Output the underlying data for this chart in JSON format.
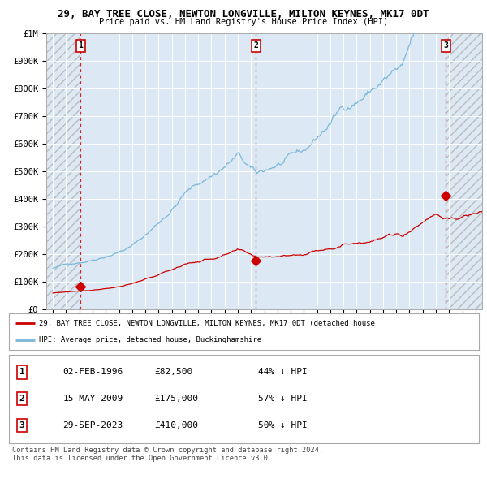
{
  "title": "29, BAY TREE CLOSE, NEWTON LONGVILLE, MILTON KEYNES, MK17 0DT",
  "subtitle": "Price paid vs. HM Land Registry's House Price Index (HPI)",
  "bg_color": "#dce9f5",
  "hpi_color": "#7ab8d9",
  "price_color": "#cc0000",
  "vline_color": "#cc0000",
  "sale_years": [
    1996.09,
    2009.37,
    2023.75
  ],
  "sale_prices": [
    82500,
    175000,
    410000
  ],
  "legend_line1": "29, BAY TREE CLOSE, NEWTON LONGVILLE, MILTON KEYNES, MK17 0DT (detached house",
  "legend_line2": "HPI: Average price, detached house, Buckinghamshire",
  "table_rows": [
    [
      "1",
      "02-FEB-1996",
      "£82,500",
      "44% ↓ HPI"
    ],
    [
      "2",
      "15-MAY-2009",
      "£175,000",
      "57% ↓ HPI"
    ],
    [
      "3",
      "29-SEP-2023",
      "£410,000",
      "50% ↓ HPI"
    ]
  ],
  "footer": "Contains HM Land Registry data © Crown copyright and database right 2024.\nThis data is licensed under the Open Government Licence v3.0.",
  "ylim": [
    0,
    1000000
  ],
  "yticks": [
    0,
    100000,
    200000,
    300000,
    400000,
    500000,
    600000,
    700000,
    800000,
    900000,
    1000000
  ],
  "ytick_labels": [
    "£0",
    "£100K",
    "£200K",
    "£300K",
    "£400K",
    "£500K",
    "£600K",
    "£700K",
    "£800K",
    "£900K",
    "£1M"
  ],
  "xlim_start": 1993.5,
  "xlim_end": 2026.5,
  "x_ticks_start": 1994,
  "x_ticks_end": 2027
}
